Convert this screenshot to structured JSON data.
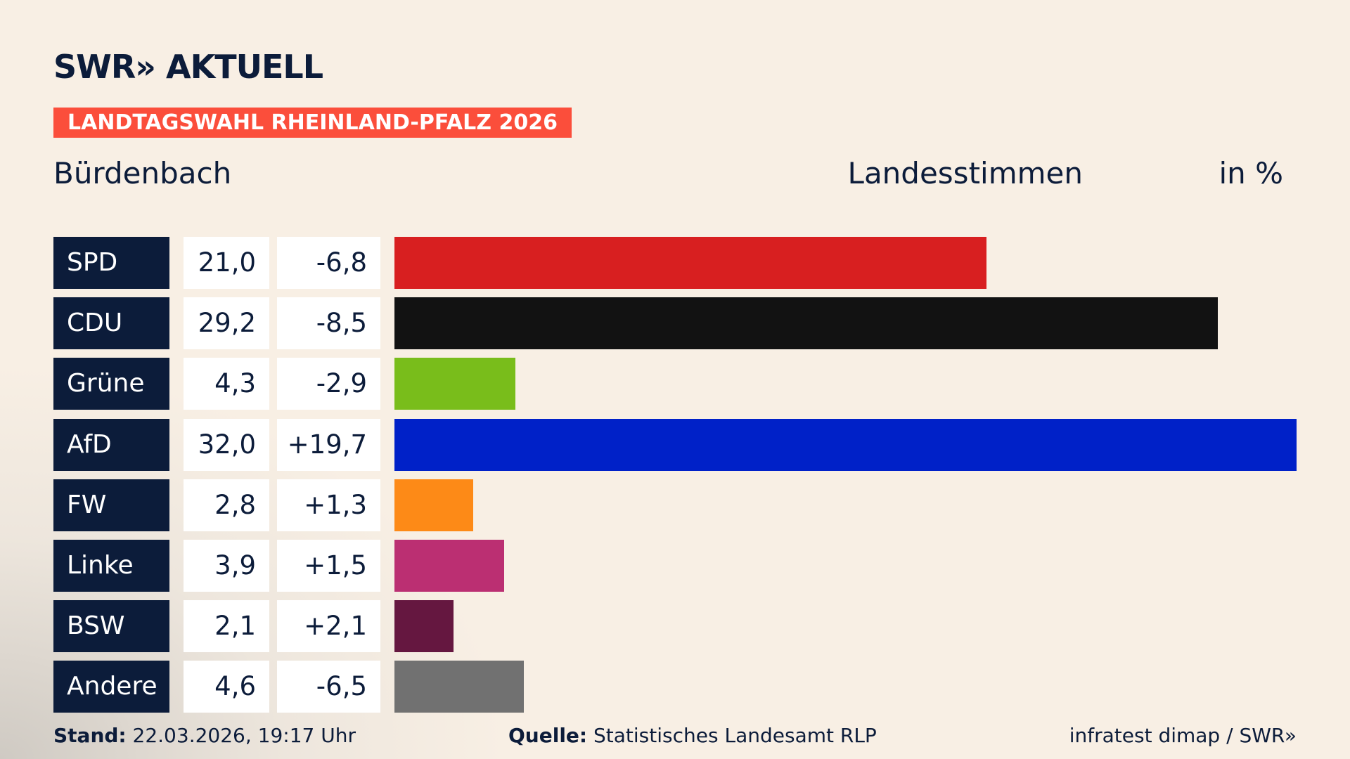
{
  "header": {
    "logo": "SWR» AKTUELL",
    "banner": "LANDTAGSWAHL RHEINLAND-PFALZ 2026",
    "place": "Bürdenbach",
    "measure": "Landesstimmen",
    "unit": "in %"
  },
  "chart_data": {
    "type": "bar",
    "orientation": "horizontal",
    "categories": [
      "SPD",
      "CDU",
      "Grüne",
      "AfD",
      "FW",
      "Linke",
      "BSW",
      "Andere"
    ],
    "values": [
      "21,0",
      "29,2",
      "4,3",
      "32,0",
      "2,8",
      "3,9",
      "2,1",
      "4,6"
    ],
    "numeric_values": [
      21.0,
      29.2,
      4.3,
      32.0,
      2.8,
      3.9,
      2.1,
      4.6
    ],
    "changes": [
      "-6,8",
      "-8,5",
      "-2,9",
      "+19,7",
      "+1,3",
      "+1,5",
      "+2,1",
      "-6,5"
    ],
    "colors": [
      "#d81f20",
      "#121212",
      "#79bd1b",
      "#0021c8",
      "#fd8a17",
      "#bb2f72",
      "#651740",
      "#717171"
    ],
    "xlim": [
      0,
      32.0
    ]
  },
  "footer": {
    "stand_label": "Stand:",
    "stand": "22.03.2026, 19:17 Uhr",
    "source_label": "Quelle:",
    "source": "Statistisches Landesamt RLP",
    "credit": "infratest dimap / SWR»"
  }
}
